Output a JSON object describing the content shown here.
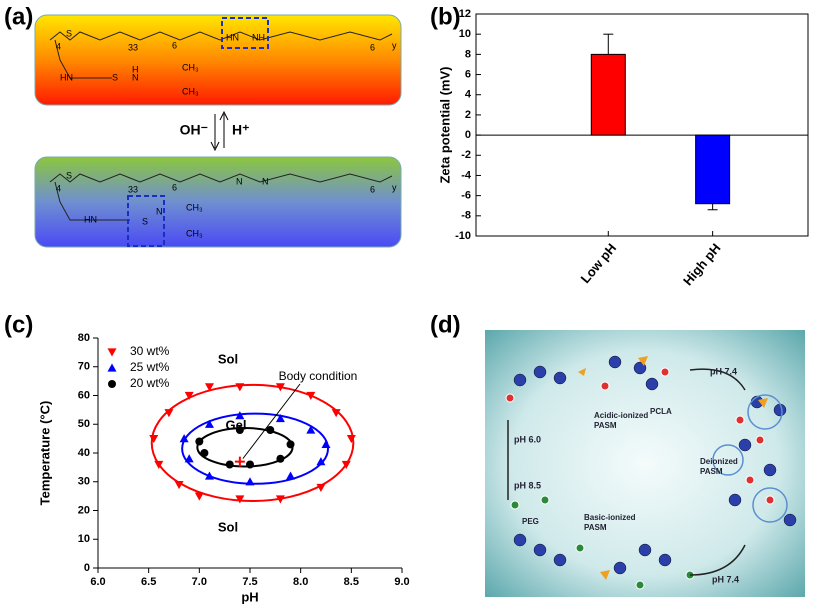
{
  "panels": {
    "a": "(a)",
    "b": "(b)",
    "c": "(c)",
    "d": "(d)"
  },
  "scheme_a": {
    "top_molecule": [
      "4",
      "S",
      "33",
      "6",
      "HN",
      "NH",
      "6",
      "y",
      "HN",
      "S",
      "N",
      "H",
      "CH₃",
      "CH₃"
    ],
    "bottom_molecule": [
      "4",
      "S",
      "33",
      "6",
      "N",
      "N",
      "6",
      "y",
      "HN",
      "S",
      "N",
      "CH₃",
      "CH₃"
    ],
    "arrow_left": "OH⁻",
    "arrow_right": "H⁺"
  },
  "scheme_d": {
    "ph_top": "pH 7.4",
    "ph_up": "pH 6.0",
    "ph_down": "pH 8.5",
    "ph_bottom": "pH 7.4",
    "acidic": [
      "Acidic-ionized",
      "PASM"
    ],
    "pcla": "PCLA",
    "deionized": [
      "Deionized",
      "PASM"
    ],
    "basic": [
      "Basic-ionized",
      "PASM"
    ],
    "peg": "PEG"
  },
  "chart_data": [
    {
      "type": "bar",
      "y_label": "Zeta potential (mV)",
      "categories": [
        "Low pH",
        "High pH"
      ],
      "values": [
        8,
        -6.8
      ],
      "errors": [
        2,
        0.6
      ],
      "colors": [
        "#ff0000",
        "#0000ff"
      ],
      "ylim": [
        -10,
        12
      ],
      "yticks": [
        -10,
        -8,
        -6,
        -4,
        -2,
        0,
        2,
        4,
        6,
        8,
        10,
        12
      ]
    },
    {
      "type": "scatter",
      "x_label": "pH",
      "y_label": "Temperature (°C)",
      "xlim": [
        6,
        9
      ],
      "xticks": [
        {
          "value": 6,
          "label": "6.0"
        },
        6.5,
        {
          "value": 7,
          "label": "7.0"
        },
        7.5,
        {
          "value": 8,
          "label": "8.0"
        },
        8.5,
        {
          "value": 9,
          "label": "9.0"
        }
      ],
      "ylim": [
        0,
        80
      ],
      "yticks": [
        0,
        10,
        20,
        30,
        40,
        50,
        60,
        70,
        80
      ],
      "legend": "upper left",
      "fit": "ellipse",
      "series": [
        {
          "name": "30 wt%",
          "color": "#ff0000",
          "marker": "triangle-down",
          "x": [
            6.55,
            6.6,
            6.7,
            6.9,
            7.1,
            7.4,
            7.8,
            8.1,
            8.35,
            8.5,
            8.45,
            8.2,
            7.8,
            7.4,
            7.0,
            6.8
          ],
          "y": [
            45,
            36,
            54,
            60,
            63,
            63,
            63,
            60,
            54,
            45,
            36,
            28,
            24,
            24,
            25,
            29
          ]
        },
        {
          "name": "25 wt%",
          "color": "#0000ff",
          "marker": "triangle-up",
          "x": [
            6.85,
            6.9,
            7.1,
            7.4,
            7.8,
            8.1,
            8.25,
            8.2,
            7.9,
            7.5,
            7.1
          ],
          "y": [
            45,
            38,
            50,
            53,
            52,
            48,
            43,
            37,
            32,
            30,
            32
          ]
        },
        {
          "name": "20 wt%",
          "color": "#000000",
          "marker": "circle",
          "x": [
            7.0,
            7.05,
            7.4,
            7.7,
            7.9,
            7.8,
            7.5,
            7.3
          ],
          "y": [
            44,
            40,
            48,
            48,
            43,
            38,
            36,
            36
          ]
        }
      ],
      "body_condition": {
        "x": 7.4,
        "y": 37,
        "color": "#ff0000"
      },
      "annotations": [
        "Sol",
        "Gel",
        "Body condition",
        "Sol"
      ]
    }
  ]
}
